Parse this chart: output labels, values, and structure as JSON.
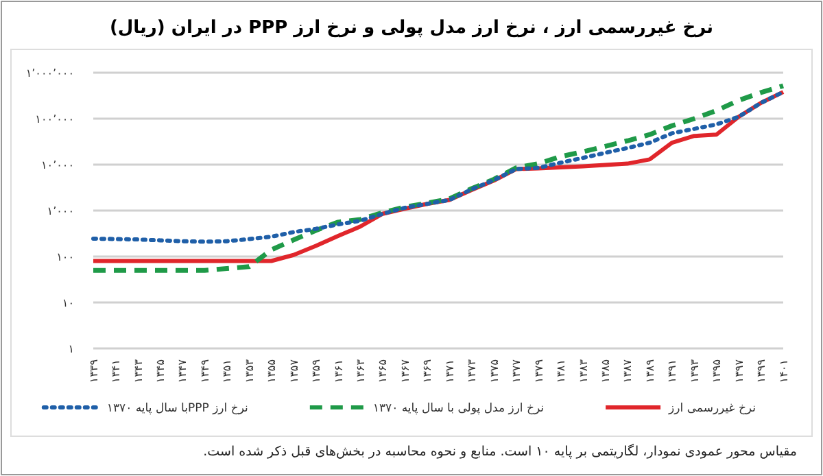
{
  "chart_data": {
    "type": "line",
    "title": "نرخ غیررسمی ارز ، نرخ ارز مدل پولی و نرخ ارز PPP در ایران (ریال)",
    "categories": [
      "۱۳۳۹",
      "۱۳۴۱",
      "۱۳۴۳",
      "۱۳۴۵",
      "۱۳۴۷",
      "۱۳۴۹",
      "۱۳۵۱",
      "۱۳۵۳",
      "۱۳۵۵",
      "۱۳۵۷",
      "۱۳۵۹",
      "۱۳۶۱",
      "۱۳۶۳",
      "۱۳۶۵",
      "۱۳۶۷",
      "۱۳۶۹",
      "۱۳۷۱",
      "۱۳۷۳",
      "۱۳۷۵",
      "۱۳۷۷",
      "۱۳۷۹",
      "۱۳۸۱",
      "۱۳۸۳",
      "۱۳۸۵",
      "۱۳۸۷",
      "۱۳۸۹",
      "۱۳۹۱",
      "۱۳۹۳",
      "۱۳۹۵",
      "۱۳۹۷",
      "۱۳۹۹",
      "۱۴۰۱"
    ],
    "series": [
      {
        "name": "نرخ غیررسمی ارز",
        "color": "#e0262b",
        "line_style": "solid",
        "values": [
          80,
          80,
          80,
          80,
          80,
          80,
          80,
          80,
          80,
          108,
          170,
          280,
          450,
          850,
          1100,
          1400,
          1700,
          2800,
          4500,
          8000,
          8300,
          8700,
          9200,
          9800,
          10500,
          13000,
          30000,
          42000,
          45000,
          110000,
          220000,
          380000
        ]
      },
      {
        "name": "نرخ ارز مدل پولی با سال پایه ۱۳۷۰",
        "color": "#1f9a48",
        "line_style": "dashed",
        "values": [
          50,
          50,
          50,
          50,
          50,
          50,
          55,
          60,
          140,
          230,
          370,
          560,
          640,
          900,
          1200,
          1450,
          1800,
          3000,
          4800,
          8500,
          10500,
          15000,
          19000,
          25000,
          33000,
          45000,
          70000,
          100000,
          150000,
          250000,
          370000,
          520000
        ]
      },
      {
        "name": "نرخ ارز PPPبا سال پایه ۱۳۷۰",
        "color": "#1f5fa8",
        "line_style": "dotted",
        "values": [
          245,
          240,
          235,
          225,
          215,
          210,
          215,
          240,
          270,
          340,
          400,
          500,
          600,
          850,
          1150,
          1400,
          1700,
          2900,
          4600,
          8000,
          8500,
          11000,
          14000,
          18000,
          23000,
          30000,
          48000,
          60000,
          75000,
          110000,
          220000,
          380000
        ]
      }
    ],
    "log": true,
    "ylim": [
      1,
      1000000
    ],
    "yticks": [
      {
        "value": 1,
        "label": "۱"
      },
      {
        "value": 10,
        "label": "۱۰"
      },
      {
        "value": 100,
        "label": "۱۰۰"
      },
      {
        "value": 1000,
        "label": "۱٬۰۰۰"
      },
      {
        "value": 10000,
        "label": "۱۰٬۰۰۰"
      },
      {
        "value": 100000,
        "label": "۱۰۰٬۰۰۰"
      },
      {
        "value": 1000000,
        "label": "۱٬۰۰۰٬۰۰۰"
      }
    ],
    "grid": "y",
    "legend": "bottom",
    "marker": "none",
    "annotations": [
      "مقیاس محور عمودی نمودار، لگاریتمی بر پایه ۱۰ است. منابع و نحوه محاسبه در بخش‌های قبل ذکر شده است."
    ]
  }
}
